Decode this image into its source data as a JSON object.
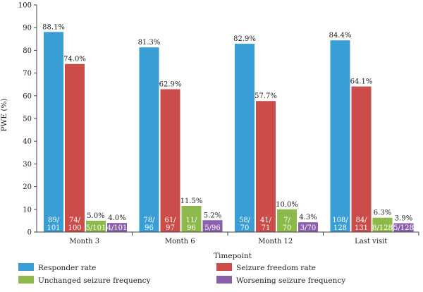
{
  "chart_data": {
    "type": "bar",
    "xlabel": "Timepoint",
    "ylabel": "PWE (%)",
    "ylim": [
      0,
      100
    ],
    "yticks": [
      0,
      10,
      20,
      30,
      40,
      50,
      60,
      70,
      80,
      90,
      100
    ],
    "categories": [
      "Month 3",
      "Month 6",
      "Month 12",
      "Last visit"
    ],
    "legend_position": "bottom",
    "series": [
      {
        "name": "Responder rate",
        "color": "#3a9ed6",
        "values": [
          88.1,
          81.3,
          82.9,
          84.4
        ],
        "value_labels": [
          "88.1%",
          "81.3%",
          "82.9%",
          "84.4%"
        ],
        "count_labels": [
          [
            "89/",
            "101"
          ],
          [
            "78/",
            "96"
          ],
          [
            "58/",
            "70"
          ],
          [
            "108/",
            "128"
          ]
        ]
      },
      {
        "name": "Seizure freedom rate",
        "color": "#cc4c4a",
        "values": [
          74.0,
          62.9,
          57.7,
          64.1
        ],
        "value_labels": [
          "74.0%",
          "62.9%",
          "57.7%",
          "64.1%"
        ],
        "count_labels": [
          [
            "74/",
            "100"
          ],
          [
            "61/",
            "97"
          ],
          [
            "41/",
            "71"
          ],
          [
            "84/",
            "131"
          ]
        ]
      },
      {
        "name": "Unchanged seizure frequency",
        "color": "#8db84a",
        "values": [
          5.0,
          11.5,
          10.0,
          6.3
        ],
        "value_labels": [
          "5.0%",
          "11.5%",
          "10.0%",
          "6.3%"
        ],
        "count_labels": [
          [
            "5/101"
          ],
          [
            "11/",
            "96"
          ],
          [
            "7/",
            "70"
          ],
          [
            "8/128"
          ]
        ]
      },
      {
        "name": "Worsening seizure frequency",
        "color": "#8a5fab",
        "values": [
          4.0,
          5.2,
          4.3,
          3.9
        ],
        "value_labels": [
          "4.0%",
          "5.2%",
          "4.3%",
          "3.9%"
        ],
        "count_labels": [
          [
            "4/101"
          ],
          [
            "5/96"
          ],
          [
            "3/70"
          ],
          [
            "5/128"
          ]
        ]
      }
    ]
  }
}
